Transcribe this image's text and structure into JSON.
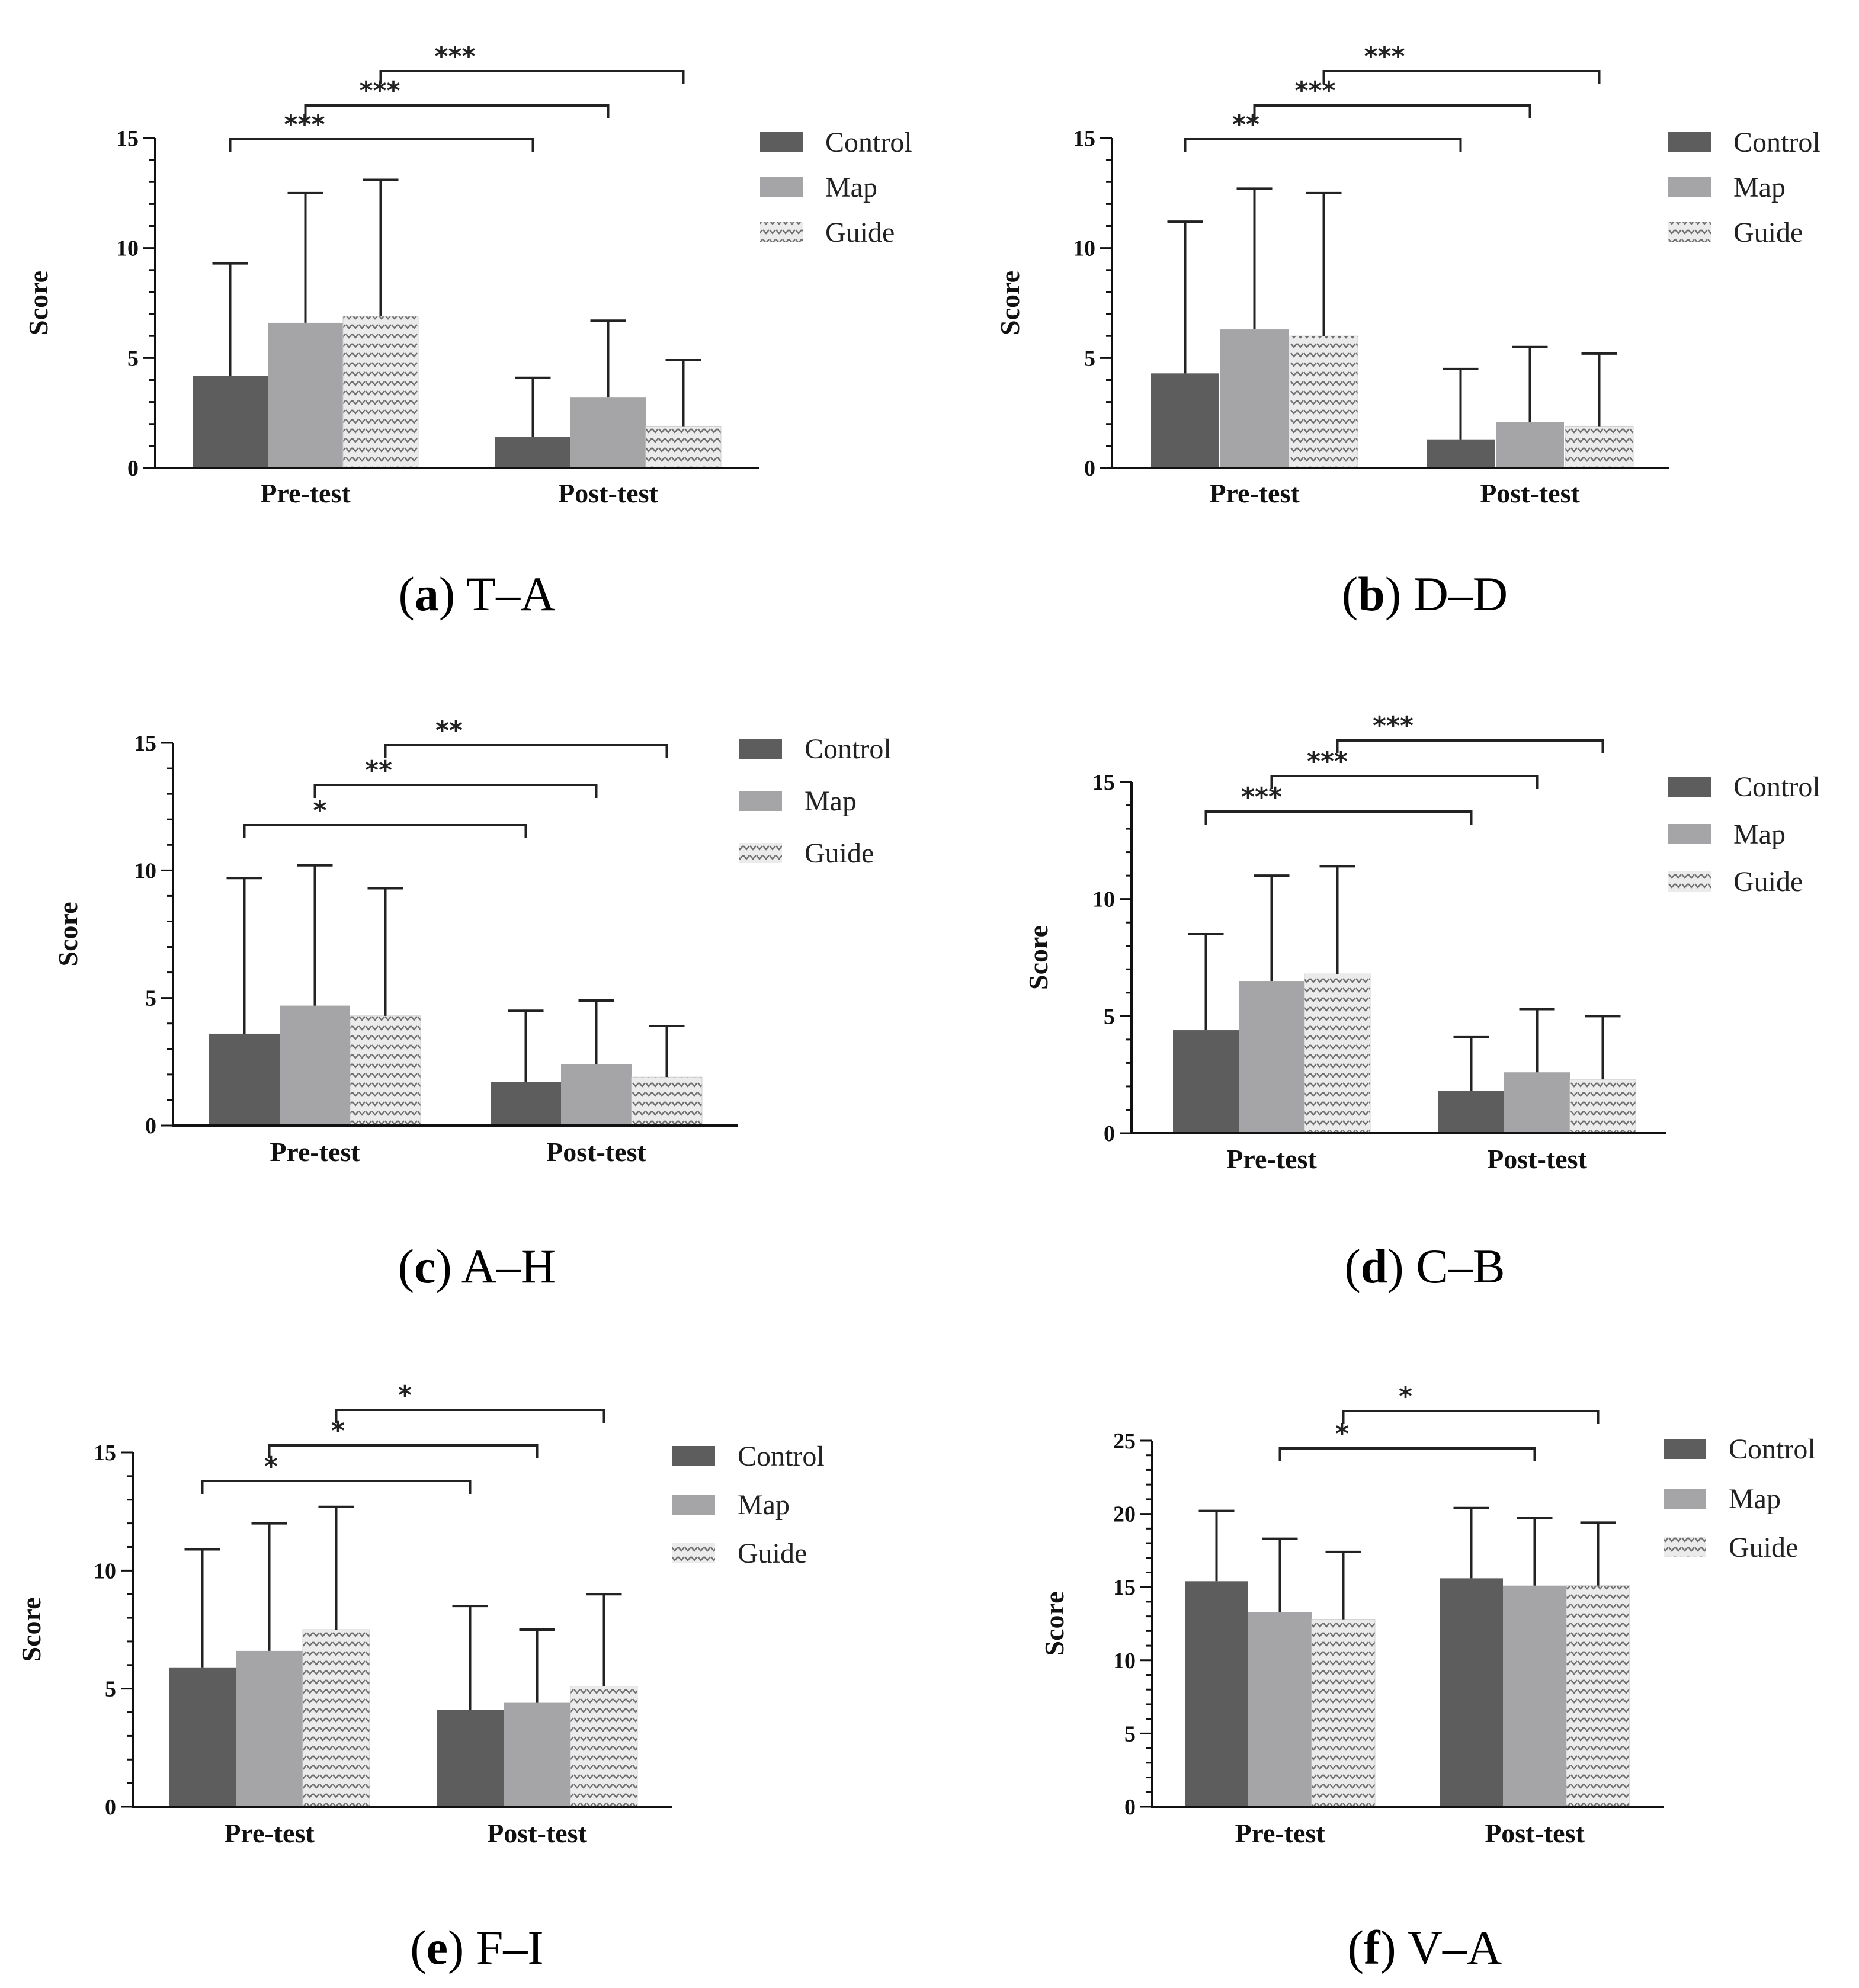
{
  "colors": {
    "control": "#5d5d5e",
    "map": "#a5a5a8",
    "guide_bg": "#ebebeb",
    "guide_mark": "#6f6f6f",
    "axis": "#111111",
    "error_bar": "#222222",
    "bracket": "#222222"
  },
  "icons": {
    "guide_pattern": "chevron-hatch-pattern"
  },
  "chart_data": [
    {
      "id": "a",
      "type": "bar",
      "caption_letter": "a",
      "caption_text": "T–A",
      "ylabel": "Score",
      "ylim": [
        0,
        15
      ],
      "yticks": [
        0,
        5,
        10,
        15
      ],
      "categories": [
        "Pre-test",
        "Post-test"
      ],
      "legend": [
        "Control",
        "Map",
        "Guide"
      ],
      "series": [
        {
          "name": "Control",
          "values": [
            4.2,
            1.4
          ],
          "errors": [
            5.1,
            2.7
          ]
        },
        {
          "name": "Map",
          "values": [
            6.6,
            3.2
          ],
          "errors": [
            5.9,
            3.5
          ]
        },
        {
          "name": "Guide",
          "values": [
            6.9,
            1.9
          ],
          "errors": [
            6.2,
            3.0
          ]
        }
      ],
      "significance": [
        {
          "from": [
            0,
            0
          ],
          "to": [
            1,
            0
          ],
          "label": "***"
        },
        {
          "from": [
            0,
            1
          ],
          "to": [
            1,
            1
          ],
          "label": "***"
        },
        {
          "from": [
            0,
            2
          ],
          "to": [
            1,
            2
          ],
          "label": "***"
        }
      ]
    },
    {
      "id": "b",
      "type": "bar",
      "caption_letter": "b",
      "caption_text": "D–D",
      "ylabel": "Score",
      "ylim": [
        0,
        15
      ],
      "yticks": [
        0,
        5,
        10,
        15
      ],
      "categories": [
        "Pre-test",
        "Post-test"
      ],
      "legend": [
        "Control",
        "Map",
        "Guide"
      ],
      "series": [
        {
          "name": "Control",
          "values": [
            4.3,
            1.3
          ],
          "errors": [
            6.9,
            3.2
          ]
        },
        {
          "name": "Map",
          "values": [
            6.3,
            2.1
          ],
          "errors": [
            6.4,
            3.4
          ]
        },
        {
          "name": "Guide",
          "values": [
            6.0,
            1.9
          ],
          "errors": [
            6.5,
            3.3
          ]
        }
      ],
      "significance": [
        {
          "from": [
            0,
            0
          ],
          "to": [
            1,
            0
          ],
          "label": "**"
        },
        {
          "from": [
            0,
            1
          ],
          "to": [
            1,
            1
          ],
          "label": "***"
        },
        {
          "from": [
            0,
            2
          ],
          "to": [
            1,
            2
          ],
          "label": "***"
        }
      ]
    },
    {
      "id": "c",
      "type": "bar",
      "caption_letter": "c",
      "caption_text": "A–H",
      "ylabel": "Score",
      "ylim": [
        0,
        15
      ],
      "yticks": [
        0,
        5,
        10,
        15
      ],
      "categories": [
        "Pre-test",
        "Post-test"
      ],
      "legend": [
        "Control",
        "Map",
        "Guide"
      ],
      "series": [
        {
          "name": "Control",
          "values": [
            3.6,
            1.7
          ],
          "errors": [
            6.1,
            2.8
          ]
        },
        {
          "name": "Map",
          "values": [
            4.7,
            2.4
          ],
          "errors": [
            5.5,
            2.5
          ]
        },
        {
          "name": "Guide",
          "values": [
            4.3,
            1.9
          ],
          "errors": [
            5.0,
            2.0
          ]
        }
      ],
      "significance": [
        {
          "from": [
            0,
            0
          ],
          "to": [
            1,
            0
          ],
          "label": "*"
        },
        {
          "from": [
            0,
            1
          ],
          "to": [
            1,
            1
          ],
          "label": "**"
        },
        {
          "from": [
            0,
            2
          ],
          "to": [
            1,
            2
          ],
          "label": "**"
        }
      ]
    },
    {
      "id": "d",
      "type": "bar",
      "caption_letter": "d",
      "caption_text": "C–B",
      "ylabel": "Score",
      "ylim": [
        0,
        15
      ],
      "yticks": [
        0,
        5,
        10,
        15
      ],
      "categories": [
        "Pre-test",
        "Post-test"
      ],
      "legend": [
        "Control",
        "Map",
        "Guide"
      ],
      "series": [
        {
          "name": "Control",
          "values": [
            4.4,
            1.8
          ],
          "errors": [
            4.1,
            2.3
          ]
        },
        {
          "name": "Map",
          "values": [
            6.5,
            2.6
          ],
          "errors": [
            4.5,
            2.7
          ]
        },
        {
          "name": "Guide",
          "values": [
            6.8,
            2.3
          ],
          "errors": [
            4.6,
            2.7
          ]
        }
      ],
      "significance": [
        {
          "from": [
            0,
            0
          ],
          "to": [
            1,
            0
          ],
          "label": "***"
        },
        {
          "from": [
            0,
            1
          ],
          "to": [
            1,
            1
          ],
          "label": "***"
        },
        {
          "from": [
            0,
            2
          ],
          "to": [
            1,
            2
          ],
          "label": "***"
        }
      ]
    },
    {
      "id": "e",
      "type": "bar",
      "caption_letter": "e",
      "caption_text": "F–I",
      "ylabel": "Score",
      "ylim": [
        0,
        15
      ],
      "yticks": [
        0,
        5,
        10,
        15
      ],
      "categories": [
        "Pre-test",
        "Post-test"
      ],
      "legend": [
        "Control",
        "Map",
        "Guide"
      ],
      "series": [
        {
          "name": "Control",
          "values": [
            5.9,
            4.1
          ],
          "errors": [
            5.0,
            4.4
          ]
        },
        {
          "name": "Map",
          "values": [
            6.6,
            4.4
          ],
          "errors": [
            5.4,
            3.1
          ]
        },
        {
          "name": "Guide",
          "values": [
            7.5,
            5.1
          ],
          "errors": [
            5.2,
            3.9
          ]
        }
      ],
      "significance": [
        {
          "from": [
            0,
            0
          ],
          "to": [
            1,
            0
          ],
          "label": "*"
        },
        {
          "from": [
            0,
            1
          ],
          "to": [
            1,
            1
          ],
          "label": "*"
        },
        {
          "from": [
            0,
            2
          ],
          "to": [
            1,
            2
          ],
          "label": "*"
        }
      ]
    },
    {
      "id": "f",
      "type": "bar",
      "caption_letter": "f",
      "caption_text": "V–A",
      "ylabel": "Score",
      "ylim": [
        0,
        25
      ],
      "yticks": [
        0,
        5,
        10,
        15,
        20,
        25
      ],
      "categories": [
        "Pre-test",
        "Post-test"
      ],
      "legend": [
        "Control",
        "Map",
        "Guide"
      ],
      "series": [
        {
          "name": "Control",
          "values": [
            15.4,
            15.6
          ],
          "errors": [
            4.8,
            4.8
          ]
        },
        {
          "name": "Map",
          "values": [
            13.3,
            15.1
          ],
          "errors": [
            5.0,
            4.6
          ]
        },
        {
          "name": "Guide",
          "values": [
            12.8,
            15.1
          ],
          "errors": [
            4.6,
            4.3
          ]
        }
      ],
      "significance": [
        {
          "from": [
            0,
            1
          ],
          "to": [
            1,
            1
          ],
          "label": "*"
        },
        {
          "from": [
            0,
            2
          ],
          "to": [
            1,
            2
          ],
          "label": "*"
        }
      ]
    }
  ]
}
